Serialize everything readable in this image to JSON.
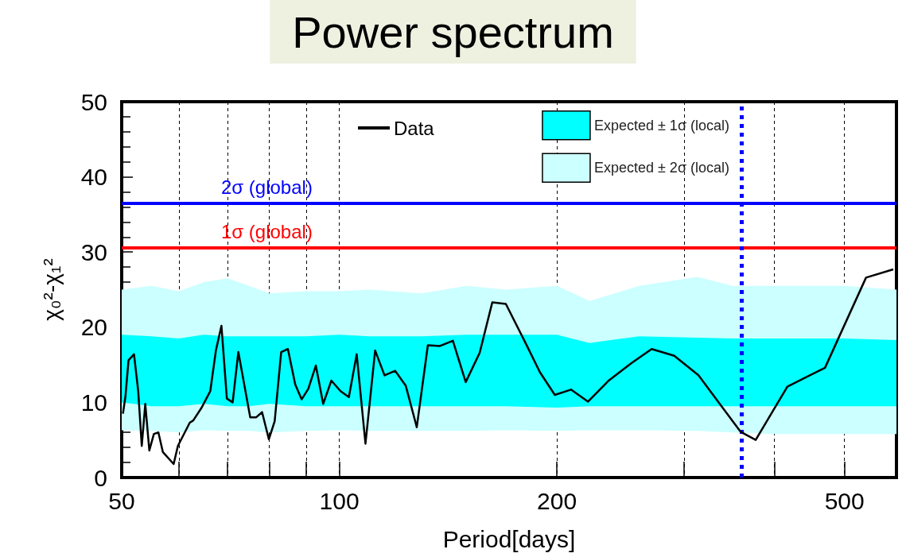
{
  "chart_data": {
    "type": "line",
    "title": "Power spectrum",
    "xlabel": "Period[days]",
    "ylabel": "χ₀²-χ₁²",
    "log": "x",
    "grid": "x",
    "legend": "top right",
    "marker": "none",
    "line_style": "solid",
    "xlim": [
      50,
      590
    ],
    "xticks": [
      50,
      {
        "value": 60,
        "label": null
      },
      {
        "value": 70,
        "label": null
      },
      {
        "value": 80,
        "label": null
      },
      {
        "value": 90,
        "label": null
      },
      100,
      200,
      {
        "value": 300,
        "label": null
      },
      {
        "value": 400,
        "label": null
      },
      500
    ],
    "ylim": [
      0,
      50
    ],
    "yticks": [
      0,
      10,
      20,
      30,
      40,
      50
    ],
    "series": [
      {
        "name": "Expected ± 2σ (local)",
        "type": "area",
        "color": "#ccffff",
        "x": [
          50,
          55,
          60,
          65,
          70,
          75,
          80,
          90,
          100,
          110,
          130,
          150,
          170,
          200,
          222,
          260,
          313,
          350,
          400,
          450,
          500,
          590
        ],
        "values": [
          null,
          null,
          null,
          null,
          null,
          null,
          null,
          null,
          null,
          null,
          null,
          null,
          null,
          null,
          null,
          null,
          null,
          null,
          null,
          null,
          null,
          null
        ],
        "lower": [
          6.3,
          6.2,
          6.0,
          6.3,
          6.2,
          6.2,
          6.0,
          6.2,
          6.3,
          6.2,
          6.2,
          6.2,
          6.3,
          6.2,
          6.3,
          6.3,
          6.2,
          6.0,
          5.8,
          5.8,
          5.8,
          5.8
        ],
        "upper": [
          25,
          25.5,
          24.8,
          26,
          26.5,
          25.5,
          24.5,
          24.8,
          24.8,
          25,
          24.5,
          25.5,
          25,
          25.5,
          23.5,
          25.5,
          26.7,
          25.5,
          25.5,
          25.5,
          25.5,
          25
        ]
      },
      {
        "name": "Expected ± 1σ (local)",
        "type": "area",
        "color": "#00ffff",
        "x": [
          50,
          55,
          60,
          65,
          70,
          75,
          80,
          90,
          100,
          110,
          130,
          150,
          170,
          200,
          222,
          260,
          313,
          350,
          400,
          450,
          500,
          590
        ],
        "values": [
          null,
          null,
          null,
          null,
          null,
          null,
          null,
          null,
          null,
          null,
          null,
          null,
          null,
          null,
          null,
          null,
          null,
          null,
          null,
          null,
          null,
          null
        ],
        "lower": [
          10,
          9.5,
          9.5,
          9.8,
          9.5,
          9.5,
          9.8,
          9.5,
          9.5,
          9.5,
          9.5,
          9.5,
          9.5,
          9.3,
          9.5,
          9.5,
          9.5,
          9.5,
          9.5,
          9.5,
          9.5,
          9.5
        ],
        "upper": [
          19,
          18.8,
          18.5,
          19,
          18.8,
          18.8,
          18.8,
          18.8,
          19,
          18.8,
          18.8,
          19,
          19,
          19,
          17.9,
          18.8,
          18.6,
          18.5,
          18.5,
          18.5,
          18.5,
          18.3
        ]
      },
      {
        "name": "Data",
        "color": "#000000",
        "x": [
          50.2,
          50.6,
          51.1,
          52.0,
          52.7,
          53.3,
          53.9,
          54.6,
          55.4,
          56.2,
          57.0,
          59.0,
          59.8,
          62.1,
          62.8,
          64.5,
          66.3,
          67.5,
          68.7,
          69.9,
          71.2,
          72.5,
          75.3,
          76.7,
          78.2,
          79.9,
          81.4,
          83.1,
          84.9,
          86.9,
          88.7,
          90.6,
          92.8,
          95.0,
          97.5,
          100.4,
          103.1,
          105.7,
          108.7,
          112.1,
          115.5,
          119.5,
          123.6,
          128.0,
          132.6,
          137.8,
          143.6,
          149.6,
          156.4,
          162.8,
          170.0,
          181.0,
          189.5,
          198.7,
          209.2,
          220.9,
          235.9,
          253.4,
          270.5,
          290.7,
          314,
          359.0,
          376.8,
          416.8,
          469.9,
          535.5,
          584
        ],
        "values": [
          8.5,
          10.8,
          15.6,
          16.4,
          11.5,
          4.2,
          9.8,
          3.6,
          5.8,
          6.0,
          3.4,
          1.8,
          4.2,
          7.3,
          7.6,
          9.3,
          11.5,
          16.9,
          20.2,
          10.5,
          10.0,
          16.7,
          8.0,
          8.0,
          8.7,
          5.1,
          7.5,
          16.7,
          17.1,
          12.4,
          10.4,
          11.8,
          14.9,
          9.8,
          12.9,
          11.5,
          10.7,
          16.4,
          4.5,
          16.9,
          13.6,
          14.2,
          12.2,
          6.7,
          17.6,
          17.5,
          18.2,
          12.7,
          16.6,
          23.3,
          23.1,
          17.9,
          14.0,
          11.0,
          11.7,
          10.1,
          12.9,
          15.2,
          17.1,
          16.2,
          13.6,
          6.1,
          5.0,
          12.1,
          14.6,
          26.6,
          27.7
        ]
      }
    ],
    "ref_lines": [
      {
        "axis": "y",
        "value": 36.5,
        "label": "2σ (global)",
        "color": "#0000ff",
        "line_style": "solid"
      },
      {
        "axis": "y",
        "value": 30.6,
        "label": "1σ (global)",
        "color": "#ff0000",
        "line_style": "solid"
      },
      {
        "axis": "x",
        "value": 360,
        "label": null,
        "color": "#0000ff",
        "line_style": "dotted"
      }
    ]
  }
}
